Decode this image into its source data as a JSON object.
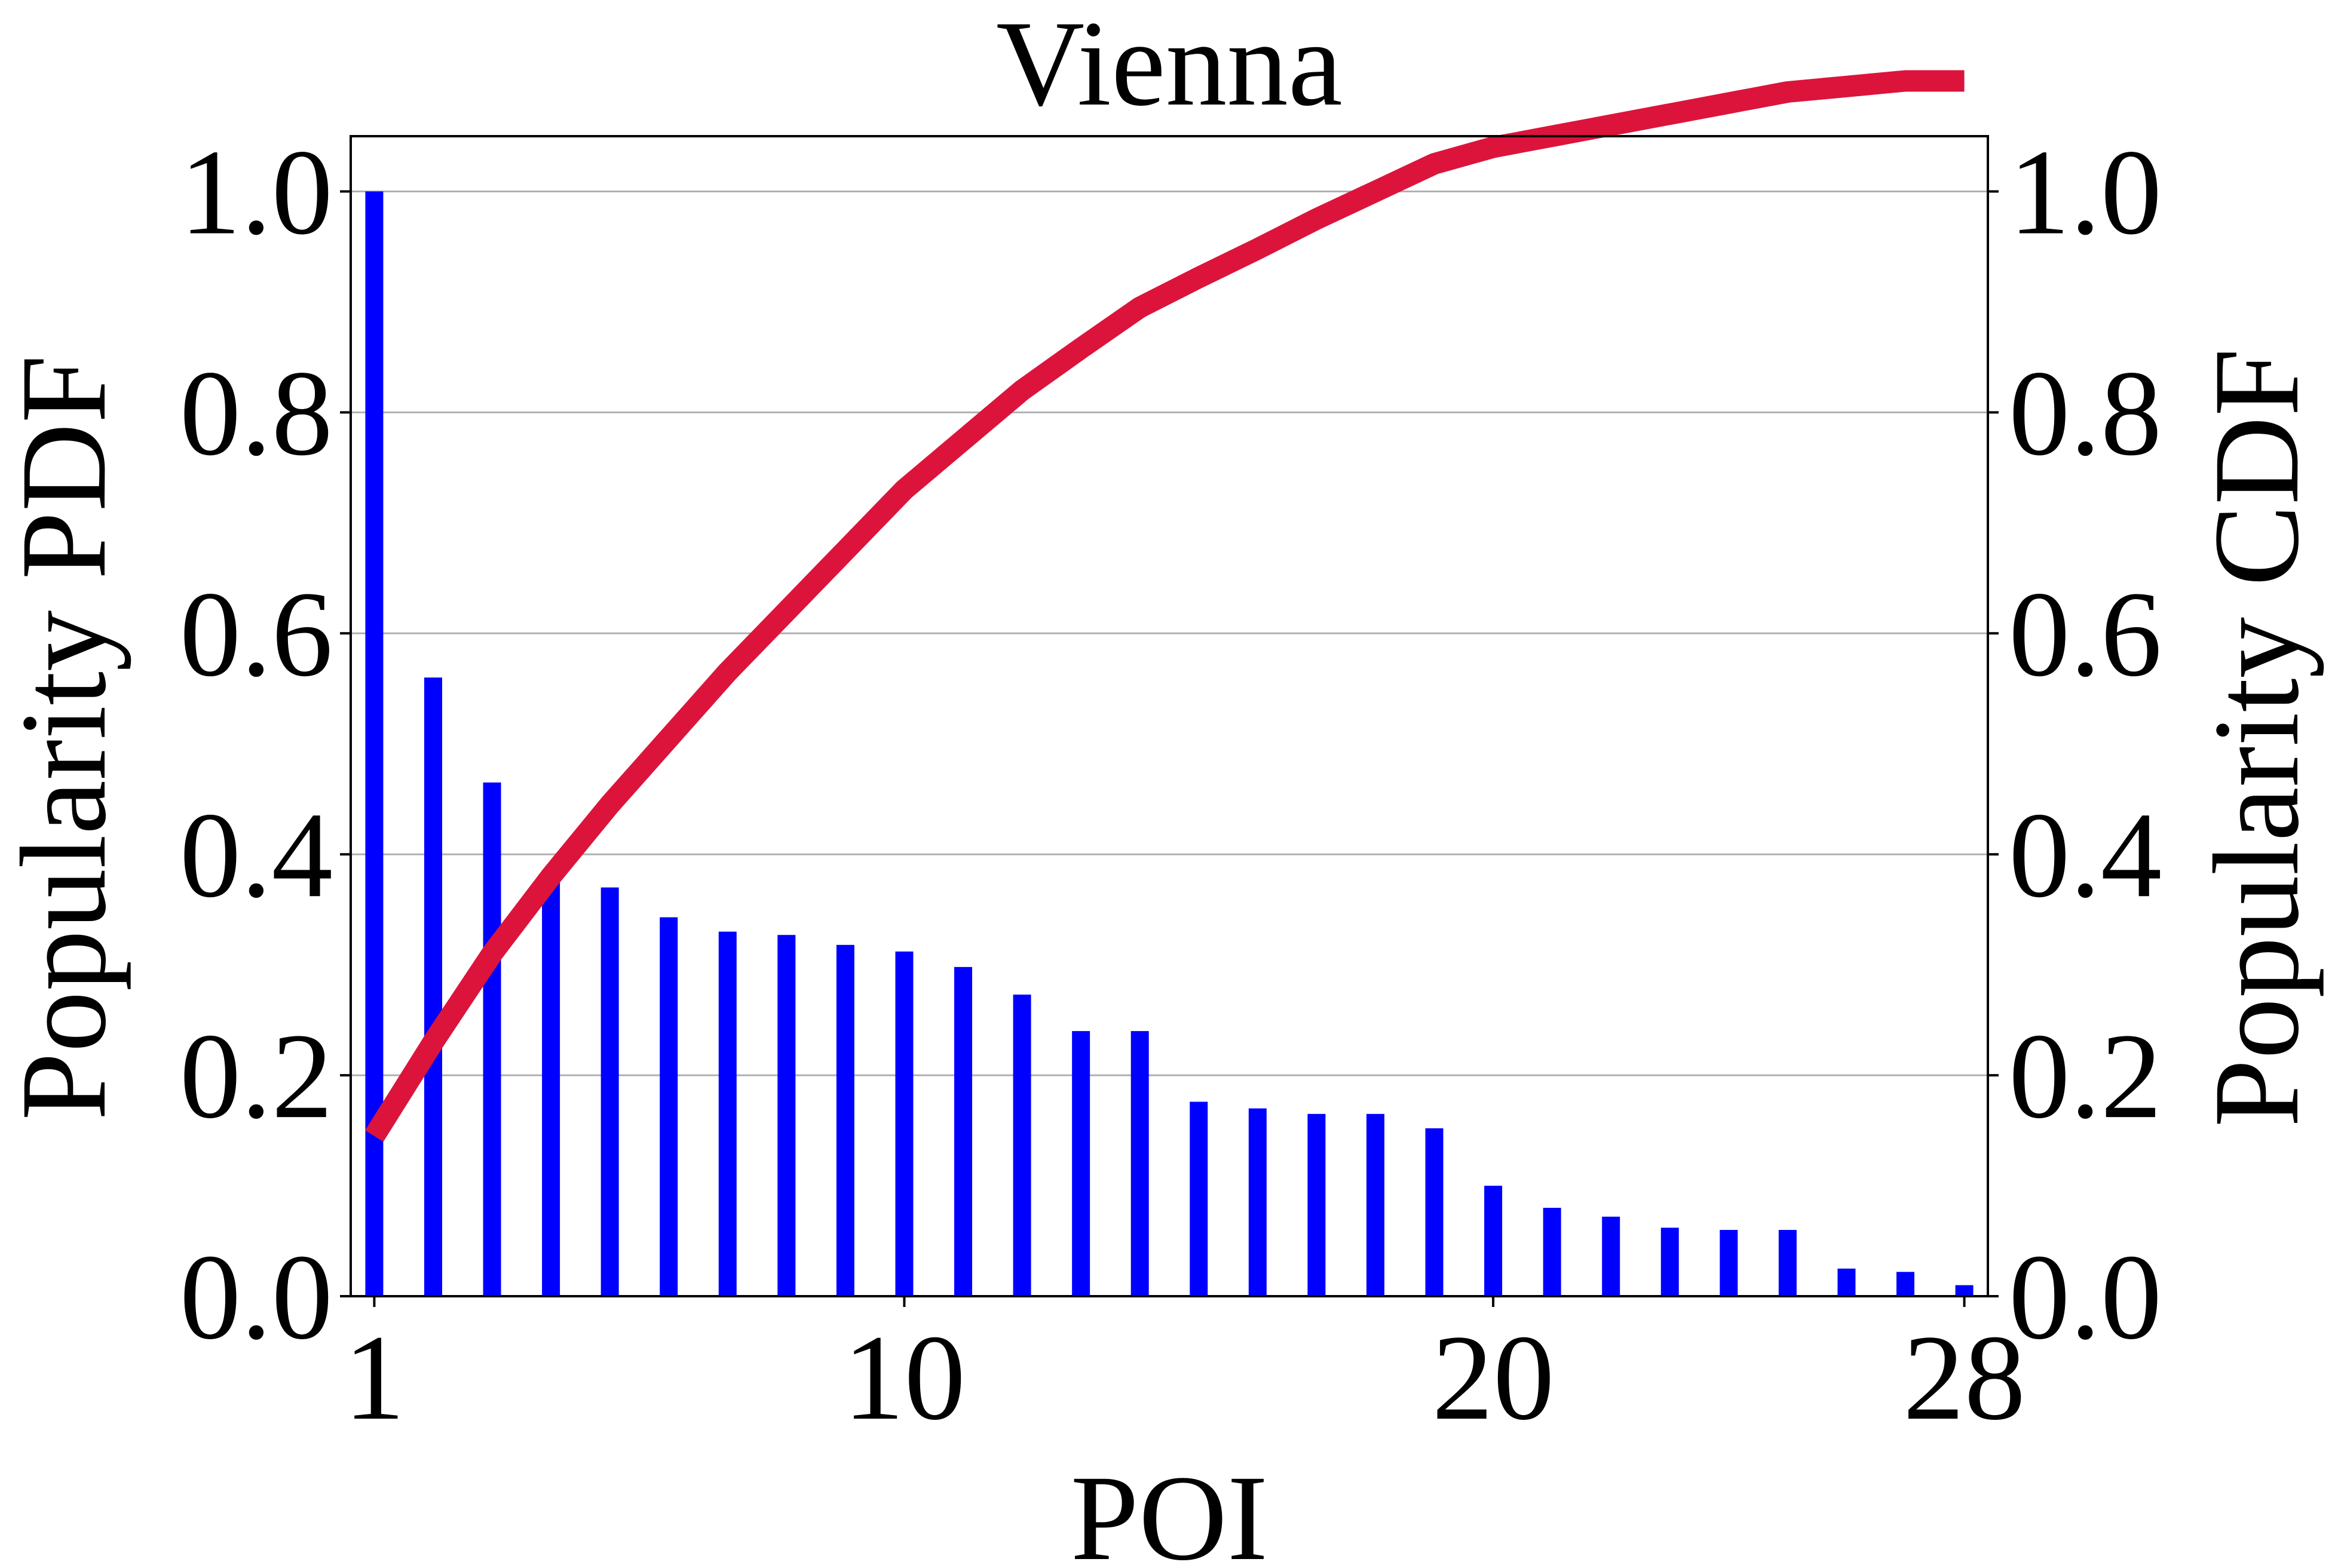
{
  "chart_data": {
    "type": "bar",
    "title": "Vienna",
    "xlabel": "POI",
    "ylabel_left": "Popularity PDF",
    "ylabel_right": "Popularity CDF",
    "x_ticks": [
      1,
      10,
      20,
      28
    ],
    "y_ticks": [
      0.0,
      0.2,
      0.4,
      0.6,
      0.8,
      1.0
    ],
    "y_tick_labels": [
      "0.0",
      "0.2",
      "0.4",
      "0.6",
      "0.8",
      "1.0"
    ],
    "xlim": [
      0.6,
      28.4
    ],
    "ylim_left": [
      0,
      1.05
    ],
    "ylim_right": [
      0,
      1.05
    ],
    "grid": "horizontal",
    "x": [
      1,
      2,
      3,
      4,
      5,
      6,
      7,
      8,
      9,
      10,
      11,
      12,
      13,
      14,
      15,
      16,
      17,
      18,
      19,
      20,
      21,
      22,
      23,
      24,
      25,
      26,
      27,
      28
    ],
    "series": [
      {
        "axis": "left",
        "kind": "bar",
        "color": "#0000ff",
        "values": [
          1.0,
          0.56,
          0.465,
          0.375,
          0.37,
          0.343,
          0.33,
          0.327,
          0.318,
          0.312,
          0.298,
          0.273,
          0.24,
          0.24,
          0.176,
          0.17,
          0.165,
          0.165,
          0.152,
          0.1,
          0.08,
          0.072,
          0.062,
          0.06,
          0.06,
          0.025,
          0.022,
          0.01
        ]
      },
      {
        "axis": "right",
        "kind": "line",
        "color": "#dc143c",
        "values": [
          0.145,
          0.23,
          0.31,
          0.38,
          0.445,
          0.505,
          0.565,
          0.62,
          0.675,
          0.73,
          0.775,
          0.82,
          0.858,
          0.895,
          0.922,
          0.948,
          0.975,
          1.0,
          1.025,
          1.04,
          1.05,
          1.06,
          1.07,
          1.08,
          1.09,
          1.095,
          1.1,
          1.1
        ]
      }
    ]
  }
}
